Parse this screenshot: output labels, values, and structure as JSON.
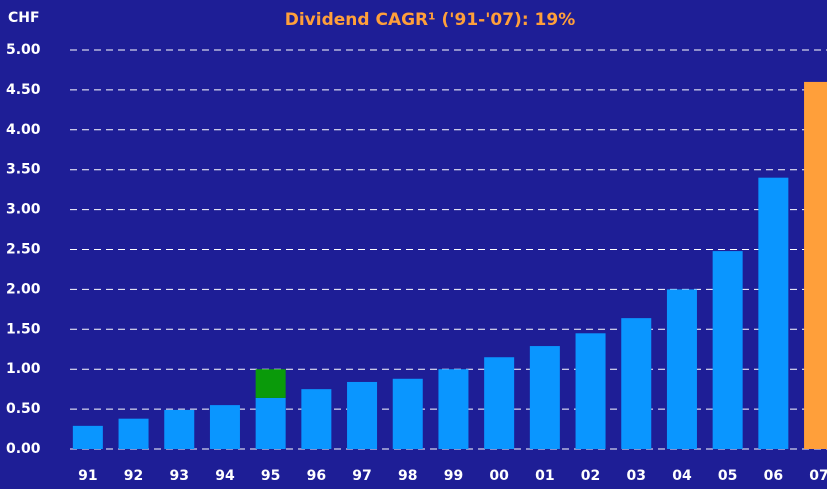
{
  "chart_data": {
    "type": "bar",
    "title": "Dividend CAGR¹ ('91-'07): 19%",
    "y_label": "CHF",
    "categories": [
      "91",
      "92",
      "93",
      "94",
      "95",
      "96",
      "97",
      "98",
      "99",
      "00",
      "01",
      "02",
      "03",
      "04",
      "05",
      "06",
      "07"
    ],
    "series": [
      {
        "color": "#0a96ff",
        "colors": [
          "#0a96ff",
          "#0a96ff",
          "#0a96ff",
          "#0a96ff",
          "#0a96ff",
          "#0a96ff",
          "#0a96ff",
          "#0a96ff",
          "#0a96ff",
          "#0a96ff",
          "#0a96ff",
          "#0a96ff",
          "#0a96ff",
          "#0a96ff",
          "#0a96ff",
          "#0a96ff",
          "#ff9f3a"
        ],
        "values": [
          0.29,
          0.38,
          0.49,
          0.55,
          0.64,
          0.75,
          0.84,
          0.88,
          1.0,
          1.15,
          1.29,
          1.45,
          1.64,
          2.0,
          2.48,
          3.4,
          4.6
        ]
      },
      {
        "color": "#0a9a0a",
        "values": [
          null,
          null,
          null,
          null,
          0.36,
          null,
          null,
          null,
          null,
          null,
          null,
          null,
          null,
          null,
          null,
          null,
          null
        ]
      }
    ],
    "stacked": true,
    "ylim": [
      0,
      5
    ],
    "yticks": [
      {
        "value": 0,
        "label": "0.00"
      },
      {
        "value": 0.5,
        "label": "0.50"
      },
      {
        "value": 1,
        "label": "1.00"
      },
      {
        "value": 1.5,
        "label": "1.50"
      },
      {
        "value": 2,
        "label": "2.00"
      },
      {
        "value": 2.5,
        "label": "2.50"
      },
      {
        "value": 3,
        "label": "3.00"
      },
      {
        "value": 3.5,
        "label": "3.50"
      },
      {
        "value": 4,
        "label": "4.00"
      },
      {
        "value": 4.5,
        "label": "4.50"
      },
      {
        "value": 5,
        "label": "5.00"
      }
    ],
    "grid": true
  }
}
